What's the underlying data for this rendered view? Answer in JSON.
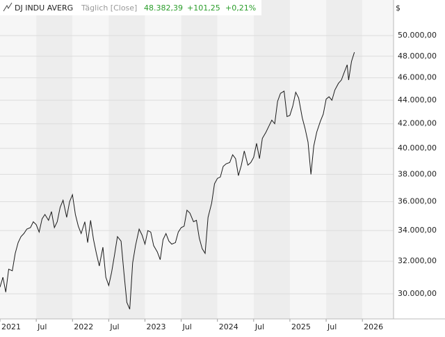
{
  "chart_data": {
    "type": "line",
    "title": "DJ INDU AVERG",
    "subtitle": "Täglich [Close]",
    "quote": {
      "last": "48.382,39",
      "change": "+101,25",
      "change_pct": "+0,21%",
      "color": "#2a9d2a"
    },
    "currency": "$",
    "log_y": true,
    "grid": true,
    "xlim": [
      2021,
      2026.43
    ],
    "ylim": [
      28550,
      53650
    ],
    "xticks": [
      {
        "value": 2021,
        "label": "2021"
      },
      {
        "value": 2021.5,
        "label": "Jul"
      },
      {
        "value": 2022,
        "label": "2022"
      },
      {
        "value": 2022.5,
        "label": "Jul"
      },
      {
        "value": 2023,
        "label": "2023"
      },
      {
        "value": 2023.5,
        "label": "Jul"
      },
      {
        "value": 2024,
        "label": "2024"
      },
      {
        "value": 2024.5,
        "label": "Jul"
      },
      {
        "value": 2025,
        "label": "2025"
      },
      {
        "value": 2025.5,
        "label": "Jul"
      },
      {
        "value": 2026,
        "label": "2026"
      }
    ],
    "yticks": [
      {
        "value": 30000,
        "label": "30.000,00"
      },
      {
        "value": 32000,
        "label": "32.000,00"
      },
      {
        "value": 34000,
        "label": "34.000,00"
      },
      {
        "value": 36000,
        "label": "36.000,00"
      },
      {
        "value": 38000,
        "label": "38.000,00"
      },
      {
        "value": 40000,
        "label": "40.000,00"
      },
      {
        "value": 42000,
        "label": "42.000,00"
      },
      {
        "value": 44000,
        "label": "44.000,00"
      },
      {
        "value": 46000,
        "label": "46.000,00"
      },
      {
        "value": 48000,
        "label": "48.000,00"
      },
      {
        "value": 50000,
        "label": "50.000,00"
      }
    ],
    "series": [
      {
        "name": "DJ INDU AVERG",
        "color": "#1a1a1a",
        "x": [
          2021.0,
          2021.04,
          2021.08,
          2021.12,
          2021.17,
          2021.21,
          2021.25,
          2021.29,
          2021.33,
          2021.37,
          2021.42,
          2021.46,
          2021.5,
          2021.54,
          2021.58,
          2021.62,
          2021.67,
          2021.71,
          2021.75,
          2021.79,
          2021.83,
          2021.87,
          2021.92,
          2021.96,
          2022.0,
          2022.04,
          2022.08,
          2022.12,
          2022.17,
          2022.21,
          2022.25,
          2022.29,
          2022.33,
          2022.37,
          2022.42,
          2022.46,
          2022.5,
          2022.54,
          2022.58,
          2022.62,
          2022.67,
          2022.71,
          2022.75,
          2022.79,
          2022.83,
          2022.87,
          2022.92,
          2022.96,
          2023.0,
          2023.04,
          2023.08,
          2023.12,
          2023.17,
          2023.21,
          2023.25,
          2023.29,
          2023.33,
          2023.37,
          2023.42,
          2023.46,
          2023.5,
          2023.54,
          2023.58,
          2023.62,
          2023.67,
          2023.71,
          2023.75,
          2023.79,
          2023.83,
          2023.87,
          2023.92,
          2023.96,
          2024.0,
          2024.04,
          2024.08,
          2024.12,
          2024.17,
          2024.21,
          2024.25,
          2024.29,
          2024.33,
          2024.37,
          2024.42,
          2024.46,
          2024.5,
          2024.54,
          2024.58,
          2024.62,
          2024.67,
          2024.71,
          2024.75,
          2024.79,
          2024.83,
          2024.87,
          2024.92,
          2024.96,
          2025.0,
          2025.04,
          2025.08,
          2025.12,
          2025.17,
          2025.21,
          2025.25,
          2025.29,
          2025.33,
          2025.37,
          2025.42,
          2025.46,
          2025.5,
          2025.54,
          2025.58,
          2025.62,
          2025.67,
          2025.71,
          2025.75,
          2025.79,
          2025.81,
          2025.85,
          2025.89
        ],
        "values": [
          30400,
          31000,
          30100,
          31500,
          31400,
          32500,
          33200,
          33600,
          33800,
          34100,
          34200,
          34600,
          34400,
          33900,
          34800,
          35100,
          34700,
          35300,
          34200,
          34600,
          35600,
          36100,
          34900,
          36000,
          36500,
          35100,
          34300,
          33800,
          34600,
          33200,
          34700,
          33400,
          32500,
          31700,
          32900,
          31000,
          30500,
          31300,
          32400,
          33600,
          33300,
          31300,
          29500,
          29100,
          31900,
          33000,
          34100,
          33700,
          33100,
          34000,
          33900,
          33000,
          32600,
          32100,
          33400,
          33800,
          33300,
          33100,
          33200,
          33900,
          34200,
          34300,
          35400,
          35200,
          34600,
          34700,
          33500,
          32800,
          32500,
          34900,
          35900,
          37300,
          37700,
          37800,
          38600,
          38800,
          38900,
          39500,
          39200,
          37900,
          38700,
          39800,
          38700,
          38900,
          39300,
          40400,
          39200,
          40800,
          41300,
          41800,
          42300,
          42000,
          43900,
          44600,
          44800,
          42600,
          42700,
          43500,
          44700,
          44200,
          42500,
          41600,
          40500,
          38000,
          40200,
          41300,
          42200,
          42800,
          44100,
          44300,
          44000,
          44900,
          45500,
          45800,
          46500,
          47200,
          45800,
          47500,
          48382.39
        ]
      }
    ]
  }
}
